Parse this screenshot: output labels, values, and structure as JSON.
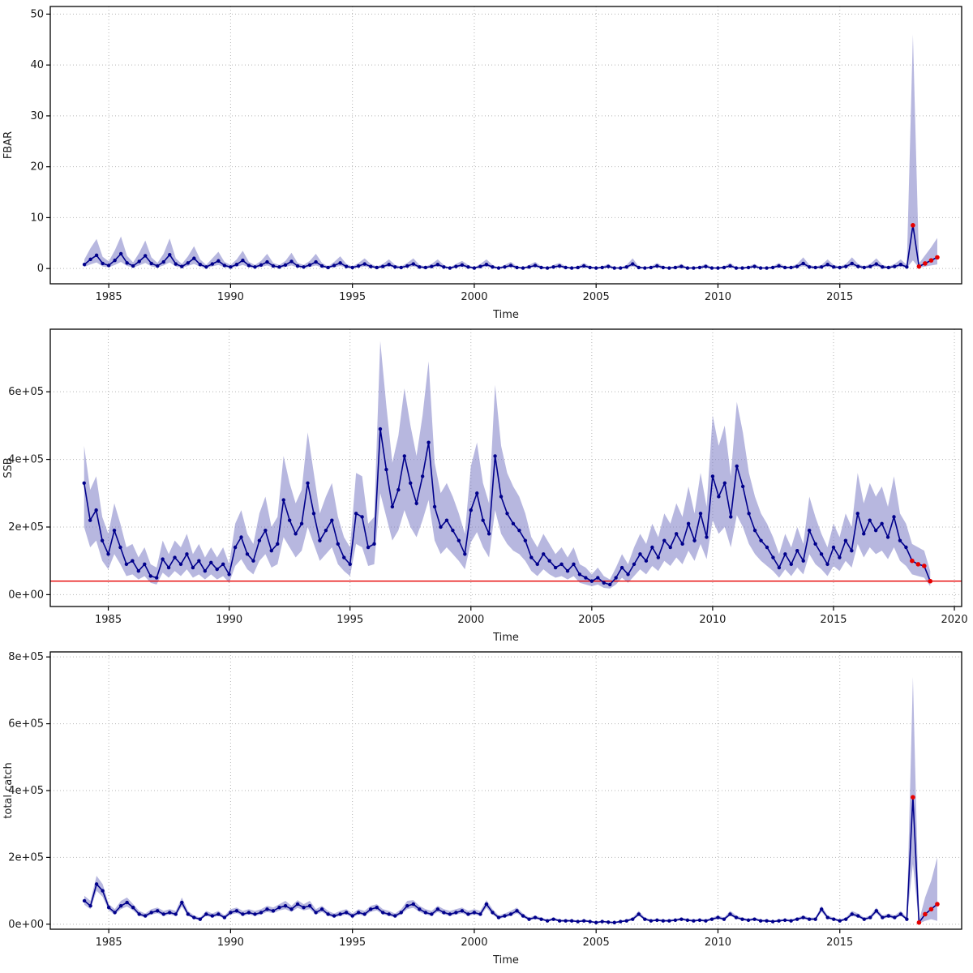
{
  "styles": {
    "line_color": "#00008b",
    "point_color": "#00008b",
    "forecast_color": "#e60000",
    "ribbon_color": "#7b7bc4",
    "ribbon_opacity": 0.55,
    "grid_color": "#b4b4b4",
    "axis_color": "#000000",
    "text_color": "#1a1a1a",
    "background": "#ffffff"
  },
  "chart_data": [
    {
      "type": "line",
      "title": "",
      "xlabel": "Time",
      "ylabel": "FBAR",
      "xlim": [
        1982.6,
        2020.0
      ],
      "ylim": [
        -3,
        51.5
      ],
      "xticks": [
        1985,
        1990,
        1995,
        2000,
        2005,
        2010,
        2015
      ],
      "yticks": [
        0,
        10,
        20,
        30,
        40,
        50
      ],
      "ytick_labels": [
        "0",
        "10",
        "20",
        "30",
        "40",
        "50"
      ],
      "x_start": 1984.0,
      "x_step": 0.25,
      "y_unit": 1,
      "red_from_index": 136,
      "y": [
        0.8,
        1.8,
        2.6,
        1.0,
        0.6,
        1.6,
        2.9,
        1.1,
        0.5,
        1.4,
        2.5,
        1.0,
        0.5,
        1.3,
        2.7,
        0.9,
        0.4,
        1.1,
        2.0,
        0.8,
        0.3,
        0.9,
        1.5,
        0.6,
        0.3,
        0.8,
        1.6,
        0.6,
        0.3,
        0.7,
        1.3,
        0.5,
        0.3,
        0.7,
        1.4,
        0.5,
        0.3,
        0.7,
        1.3,
        0.5,
        0.2,
        0.6,
        1.1,
        0.4,
        0.2,
        0.5,
        0.9,
        0.4,
        0.2,
        0.4,
        0.8,
        0.3,
        0.2,
        0.5,
        0.9,
        0.3,
        0.2,
        0.4,
        0.8,
        0.3,
        0.1,
        0.4,
        0.7,
        0.3,
        0.1,
        0.4,
        0.8,
        0.3,
        0.1,
        0.3,
        0.6,
        0.2,
        0.1,
        0.3,
        0.6,
        0.2,
        0.1,
        0.3,
        0.5,
        0.2,
        0.1,
        0.2,
        0.5,
        0.2,
        0.1,
        0.2,
        0.4,
        0.1,
        0.1,
        0.3,
        0.9,
        0.2,
        0.1,
        0.2,
        0.5,
        0.2,
        0.1,
        0.2,
        0.4,
        0.1,
        0.1,
        0.2,
        0.4,
        0.1,
        0.1,
        0.2,
        0.5,
        0.1,
        0.1,
        0.2,
        0.4,
        0.1,
        0.1,
        0.2,
        0.5,
        0.2,
        0.2,
        0.4,
        1.0,
        0.3,
        0.2,
        0.3,
        0.8,
        0.3,
        0.2,
        0.4,
        1.0,
        0.4,
        0.2,
        0.4,
        0.9,
        0.3,
        0.2,
        0.4,
        0.8,
        0.3,
        8.5,
        0.4,
        1.0,
        1.6,
        2.2
      ],
      "hi": [
        1.8,
        4.0,
        5.8,
        2.3,
        1.4,
        3.6,
        6.3,
        2.5,
        1.2,
        3.1,
        5.5,
        2.2,
        1.1,
        2.9,
        5.9,
        2.0,
        0.9,
        2.4,
        4.4,
        1.8,
        0.7,
        2.0,
        3.3,
        1.3,
        0.7,
        1.8,
        3.5,
        1.3,
        0.7,
        1.5,
        2.9,
        1.1,
        0.7,
        1.5,
        3.1,
        1.1,
        0.7,
        1.5,
        2.9,
        1.1,
        0.4,
        1.3,
        2.4,
        0.9,
        0.4,
        1.1,
        2.0,
        0.9,
        0.4,
        0.9,
        1.8,
        0.7,
        0.4,
        1.1,
        2.0,
        0.7,
        0.4,
        0.9,
        1.8,
        0.7,
        0.2,
        0.9,
        1.5,
        0.7,
        0.2,
        0.9,
        1.8,
        0.7,
        0.2,
        0.7,
        1.3,
        0.4,
        0.2,
        0.7,
        1.3,
        0.4,
        0.2,
        0.7,
        1.1,
        0.4,
        0.2,
        0.4,
        1.1,
        0.4,
        0.2,
        0.4,
        0.9,
        0.2,
        0.2,
        0.7,
        2.0,
        0.4,
        0.2,
        0.4,
        1.1,
        0.4,
        0.2,
        0.4,
        0.9,
        0.2,
        0.2,
        0.4,
        0.9,
        0.2,
        0.2,
        0.4,
        1.1,
        0.2,
        0.2,
        0.4,
        0.9,
        0.2,
        0.2,
        0.4,
        1.1,
        0.4,
        0.4,
        0.9,
        2.2,
        0.7,
        0.4,
        0.7,
        1.8,
        0.7,
        0.4,
        0.9,
        2.2,
        0.9,
        0.4,
        0.9,
        2.0,
        0.7,
        0.4,
        0.9,
        1.8,
        0.7,
        46.0,
        1.0,
        2.6,
        4.2,
        6.0
      ],
      "lo": [
        0.3,
        0.8,
        1.2,
        0.4,
        0.25,
        0.7,
        1.3,
        0.5,
        0.2,
        0.6,
        1.1,
        0.4,
        0.2,
        0.6,
        1.2,
        0.4,
        0.15,
        0.5,
        0.9,
        0.35,
        0.1,
        0.4,
        0.7,
        0.25,
        0.1,
        0.35,
        0.7,
        0.25,
        0.1,
        0.3,
        0.6,
        0.2,
        0.1,
        0.3,
        0.6,
        0.2,
        0.1,
        0.3,
        0.6,
        0.2,
        0.08,
        0.25,
        0.5,
        0.18,
        0.08,
        0.2,
        0.4,
        0.18,
        0.08,
        0.18,
        0.35,
        0.13,
        0.08,
        0.2,
        0.4,
        0.13,
        0.08,
        0.18,
        0.35,
        0.13,
        0.04,
        0.18,
        0.3,
        0.13,
        0.04,
        0.18,
        0.35,
        0.13,
        0.04,
        0.13,
        0.27,
        0.09,
        0.04,
        0.13,
        0.27,
        0.09,
        0.04,
        0.13,
        0.22,
        0.09,
        0.04,
        0.09,
        0.22,
        0.09,
        0.04,
        0.09,
        0.18,
        0.04,
        0.04,
        0.13,
        0.4,
        0.09,
        0.04,
        0.09,
        0.22,
        0.09,
        0.04,
        0.09,
        0.18,
        0.04,
        0.04,
        0.09,
        0.18,
        0.04,
        0.04,
        0.09,
        0.22,
        0.04,
        0.04,
        0.09,
        0.18,
        0.04,
        0.04,
        0.09,
        0.22,
        0.09,
        0.09,
        0.18,
        0.45,
        0.13,
        0.09,
        0.13,
        0.35,
        0.13,
        0.09,
        0.18,
        0.45,
        0.18,
        0.09,
        0.18,
        0.4,
        0.13,
        0.09,
        0.18,
        0.35,
        0.13,
        1.6,
        0.15,
        0.38,
        0.6,
        0.8
      ]
    },
    {
      "type": "line",
      "title": "",
      "xlabel": "Time",
      "ylabel": "SSB",
      "xlim": [
        1982.6,
        2020.3
      ],
      "ylim": [
        -35000,
        785000
      ],
      "xticks": [
        1985,
        1990,
        1995,
        2000,
        2005,
        2010,
        2015,
        2020
      ],
      "yticks": [
        0,
        200000,
        400000,
        600000
      ],
      "ytick_labels": [
        "0e+00",
        "2e+05",
        "4e+05",
        "6e+05"
      ],
      "x_start": 1984.0,
      "x_step": 0.25,
      "y_unit": 100000,
      "red_from_index": 137,
      "ref_line_y": 40000,
      "y": [
        3.3,
        2.2,
        2.5,
        1.6,
        1.2,
        1.9,
        1.4,
        0.9,
        1.0,
        0.7,
        0.9,
        0.55,
        0.5,
        1.05,
        0.8,
        1.1,
        0.9,
        1.2,
        0.8,
        1.0,
        0.7,
        0.95,
        0.75,
        0.9,
        0.6,
        1.4,
        1.7,
        1.2,
        1.0,
        1.6,
        1.9,
        1.3,
        1.5,
        2.8,
        2.2,
        1.8,
        2.1,
        3.3,
        2.4,
        1.6,
        1.9,
        2.2,
        1.5,
        1.1,
        0.9,
        2.4,
        2.3,
        1.4,
        1.5,
        4.9,
        3.7,
        2.6,
        3.1,
        4.1,
        3.3,
        2.7,
        3.5,
        4.5,
        2.6,
        2.0,
        2.2,
        1.9,
        1.6,
        1.2,
        2.5,
        3.0,
        2.2,
        1.8,
        4.1,
        2.9,
        2.4,
        2.1,
        1.9,
        1.6,
        1.1,
        0.9,
        1.2,
        1.0,
        0.8,
        0.9,
        0.7,
        0.9,
        0.6,
        0.5,
        0.4,
        0.5,
        0.35,
        0.3,
        0.5,
        0.8,
        0.6,
        0.9,
        1.2,
        1.0,
        1.4,
        1.1,
        1.6,
        1.4,
        1.8,
        1.5,
        2.1,
        1.6,
        2.4,
        1.7,
        3.5,
        2.9,
        3.3,
        2.3,
        3.8,
        3.2,
        2.4,
        1.9,
        1.6,
        1.4,
        1.1,
        0.8,
        1.2,
        0.9,
        1.3,
        1.0,
        1.9,
        1.5,
        1.2,
        0.9,
        1.4,
        1.1,
        1.6,
        1.3,
        2.4,
        1.8,
        2.2,
        1.9,
        2.1,
        1.7,
        2.3,
        1.6,
        1.4,
        1.0,
        0.9,
        0.85,
        0.4
      ],
      "hi": [
        4.4,
        3.1,
        3.5,
        2.3,
        1.8,
        2.7,
        2.1,
        1.4,
        1.5,
        1.1,
        1.4,
        0.9,
        0.8,
        1.6,
        1.2,
        1.6,
        1.4,
        1.8,
        1.2,
        1.5,
        1.1,
        1.4,
        1.1,
        1.4,
        0.9,
        2.1,
        2.5,
        1.8,
        1.5,
        2.4,
        2.9,
        2.0,
        2.3,
        4.1,
        3.3,
        2.7,
        3.1,
        4.8,
        3.6,
        2.4,
        2.9,
        3.3,
        2.3,
        1.7,
        1.4,
        3.6,
        3.5,
        2.1,
        2.3,
        7.5,
        5.6,
        3.9,
        4.7,
        6.1,
        5.0,
        4.1,
        5.3,
        6.9,
        3.9,
        3.0,
        3.3,
        2.9,
        2.4,
        1.8,
        3.8,
        4.5,
        3.3,
        2.7,
        6.2,
        4.4,
        3.6,
        3.2,
        2.9,
        2.4,
        1.7,
        1.4,
        1.8,
        1.5,
        1.2,
        1.4,
        1.1,
        1.4,
        0.9,
        0.8,
        0.6,
        0.8,
        0.55,
        0.45,
        0.8,
        1.2,
        0.9,
        1.4,
        1.8,
        1.5,
        2.1,
        1.7,
        2.4,
        2.1,
        2.7,
        2.3,
        3.2,
        2.4,
        3.6,
        2.6,
        5.3,
        4.4,
        5.0,
        3.5,
        5.7,
        4.8,
        3.6,
        2.9,
        2.4,
        2.1,
        1.7,
        1.2,
        1.8,
        1.4,
        2.0,
        1.5,
        2.9,
        2.3,
        1.8,
        1.4,
        2.1,
        1.7,
        2.4,
        2.0,
        3.6,
        2.7,
        3.3,
        2.9,
        3.2,
        2.6,
        3.5,
        2.4,
        2.1,
        1.5,
        1.4,
        1.3,
        0.7
      ],
      "lo": [
        2.0,
        1.4,
        1.6,
        1.0,
        0.75,
        1.2,
        0.9,
        0.55,
        0.6,
        0.45,
        0.55,
        0.35,
        0.3,
        0.65,
        0.5,
        0.7,
        0.55,
        0.75,
        0.5,
        0.6,
        0.45,
        0.6,
        0.45,
        0.55,
        0.35,
        0.85,
        1.05,
        0.75,
        0.6,
        1.0,
        1.2,
        0.8,
        0.9,
        1.7,
        1.4,
        1.1,
        1.3,
        2.0,
        1.5,
        1.0,
        1.2,
        1.4,
        0.9,
        0.7,
        0.55,
        1.5,
        1.4,
        0.85,
        0.9,
        3.0,
        2.3,
        1.6,
        1.9,
        2.5,
        2.0,
        1.7,
        2.2,
        2.8,
        1.6,
        1.2,
        1.4,
        1.2,
        1.0,
        0.75,
        1.55,
        1.85,
        1.4,
        1.1,
        2.5,
        1.8,
        1.5,
        1.3,
        1.2,
        1.0,
        0.7,
        0.55,
        0.75,
        0.6,
        0.5,
        0.55,
        0.45,
        0.55,
        0.35,
        0.3,
        0.25,
        0.3,
        0.2,
        0.18,
        0.3,
        0.5,
        0.35,
        0.55,
        0.75,
        0.6,
        0.85,
        0.7,
        1.0,
        0.85,
        1.1,
        0.9,
        1.3,
        1.0,
        1.5,
        1.05,
        2.2,
        1.8,
        2.0,
        1.4,
        2.35,
        2.0,
        1.5,
        1.2,
        1.0,
        0.85,
        0.7,
        0.5,
        0.75,
        0.55,
        0.8,
        0.6,
        1.2,
        0.9,
        0.75,
        0.55,
        0.85,
        0.7,
        1.0,
        0.8,
        1.5,
        1.1,
        1.4,
        1.2,
        1.3,
        1.05,
        1.4,
        1.0,
        0.85,
        0.6,
        0.55,
        0.5,
        0.25
      ]
    },
    {
      "type": "line",
      "title": "",
      "xlabel": "Time",
      "ylabel": "total catch",
      "xlim": [
        1982.6,
        2020.0
      ],
      "ylim": [
        -15000,
        815000
      ],
      "xticks": [
        1985,
        1990,
        1995,
        2000,
        2005,
        2010,
        2015
      ],
      "yticks": [
        0,
        200000,
        400000,
        600000,
        800000
      ],
      "ytick_labels": [
        "0e+00",
        "2e+05",
        "4e+05",
        "6e+05",
        "8e+05"
      ],
      "x_start": 1984.0,
      "x_step": 0.25,
      "y_unit": 100000,
      "red_from_index": 136,
      "y": [
        0.7,
        0.55,
        1.2,
        1.0,
        0.5,
        0.35,
        0.55,
        0.65,
        0.5,
        0.3,
        0.25,
        0.35,
        0.4,
        0.3,
        0.35,
        0.3,
        0.65,
        0.3,
        0.2,
        0.15,
        0.3,
        0.25,
        0.3,
        0.2,
        0.35,
        0.4,
        0.3,
        0.35,
        0.3,
        0.35,
        0.45,
        0.4,
        0.5,
        0.55,
        0.45,
        0.6,
        0.5,
        0.55,
        0.35,
        0.45,
        0.3,
        0.25,
        0.3,
        0.35,
        0.25,
        0.35,
        0.3,
        0.45,
        0.5,
        0.35,
        0.3,
        0.25,
        0.35,
        0.55,
        0.6,
        0.45,
        0.35,
        0.3,
        0.45,
        0.35,
        0.3,
        0.35,
        0.4,
        0.3,
        0.35,
        0.3,
        0.6,
        0.35,
        0.2,
        0.25,
        0.3,
        0.4,
        0.25,
        0.15,
        0.2,
        0.15,
        0.1,
        0.15,
        0.1,
        0.1,
        0.1,
        0.08,
        0.1,
        0.08,
        0.05,
        0.08,
        0.06,
        0.05,
        0.08,
        0.1,
        0.15,
        0.3,
        0.15,
        0.1,
        0.12,
        0.1,
        0.1,
        0.12,
        0.15,
        0.12,
        0.1,
        0.12,
        0.1,
        0.15,
        0.2,
        0.15,
        0.3,
        0.2,
        0.15,
        0.12,
        0.15,
        0.1,
        0.1,
        0.08,
        0.1,
        0.12,
        0.1,
        0.15,
        0.2,
        0.15,
        0.15,
        0.45,
        0.2,
        0.15,
        0.1,
        0.15,
        0.3,
        0.25,
        0.15,
        0.2,
        0.4,
        0.2,
        0.25,
        0.2,
        0.3,
        0.15,
        3.8,
        0.05,
        0.3,
        0.45,
        0.6
      ],
      "hi": [
        0.85,
        0.7,
        1.45,
        1.2,
        0.6,
        0.45,
        0.7,
        0.8,
        0.6,
        0.4,
        0.32,
        0.45,
        0.5,
        0.4,
        0.45,
        0.4,
        0.8,
        0.4,
        0.26,
        0.2,
        0.4,
        0.32,
        0.4,
        0.26,
        0.45,
        0.5,
        0.4,
        0.45,
        0.4,
        0.45,
        0.55,
        0.5,
        0.6,
        0.7,
        0.55,
        0.72,
        0.6,
        0.7,
        0.45,
        0.55,
        0.4,
        0.32,
        0.4,
        0.45,
        0.32,
        0.45,
        0.4,
        0.55,
        0.6,
        0.45,
        0.4,
        0.32,
        0.45,
        0.7,
        0.72,
        0.55,
        0.45,
        0.4,
        0.55,
        0.45,
        0.4,
        0.45,
        0.5,
        0.4,
        0.45,
        0.4,
        0.72,
        0.45,
        0.26,
        0.32,
        0.4,
        0.5,
        0.32,
        0.2,
        0.26,
        0.2,
        0.14,
        0.2,
        0.14,
        0.14,
        0.14,
        0.11,
        0.14,
        0.11,
        0.07,
        0.11,
        0.09,
        0.07,
        0.11,
        0.14,
        0.2,
        0.4,
        0.2,
        0.14,
        0.16,
        0.14,
        0.14,
        0.16,
        0.2,
        0.16,
        0.14,
        0.16,
        0.14,
        0.2,
        0.26,
        0.2,
        0.4,
        0.26,
        0.2,
        0.16,
        0.2,
        0.14,
        0.14,
        0.11,
        0.14,
        0.16,
        0.14,
        0.2,
        0.26,
        0.2,
        0.2,
        0.55,
        0.26,
        0.2,
        0.14,
        0.2,
        0.4,
        0.32,
        0.2,
        0.26,
        0.5,
        0.26,
        0.32,
        0.26,
        0.4,
        0.2,
        7.4,
        0.1,
        0.8,
        1.3,
        2.0
      ],
      "lo": [
        0.58,
        0.45,
        1.0,
        0.82,
        0.41,
        0.29,
        0.45,
        0.53,
        0.41,
        0.25,
        0.2,
        0.29,
        0.33,
        0.25,
        0.29,
        0.25,
        0.53,
        0.25,
        0.16,
        0.12,
        0.25,
        0.2,
        0.25,
        0.16,
        0.29,
        0.33,
        0.25,
        0.29,
        0.25,
        0.29,
        0.37,
        0.33,
        0.41,
        0.45,
        0.37,
        0.49,
        0.41,
        0.45,
        0.29,
        0.37,
        0.25,
        0.2,
        0.25,
        0.29,
        0.2,
        0.29,
        0.25,
        0.37,
        0.41,
        0.29,
        0.25,
        0.2,
        0.29,
        0.45,
        0.49,
        0.37,
        0.29,
        0.25,
        0.37,
        0.29,
        0.25,
        0.29,
        0.33,
        0.25,
        0.29,
        0.25,
        0.49,
        0.29,
        0.16,
        0.2,
        0.25,
        0.33,
        0.2,
        0.12,
        0.16,
        0.12,
        0.08,
        0.12,
        0.08,
        0.08,
        0.08,
        0.06,
        0.08,
        0.06,
        0.04,
        0.06,
        0.05,
        0.04,
        0.06,
        0.08,
        0.12,
        0.25,
        0.12,
        0.08,
        0.1,
        0.08,
        0.08,
        0.1,
        0.12,
        0.1,
        0.08,
        0.1,
        0.08,
        0.12,
        0.16,
        0.12,
        0.25,
        0.16,
        0.12,
        0.1,
        0.12,
        0.08,
        0.08,
        0.06,
        0.08,
        0.1,
        0.08,
        0.12,
        0.16,
        0.12,
        0.12,
        0.37,
        0.16,
        0.12,
        0.08,
        0.12,
        0.25,
        0.2,
        0.12,
        0.16,
        0.33,
        0.16,
        0.2,
        0.16,
        0.25,
        0.12,
        1.8,
        0.02,
        0.1,
        0.15,
        0.1
      ]
    }
  ]
}
